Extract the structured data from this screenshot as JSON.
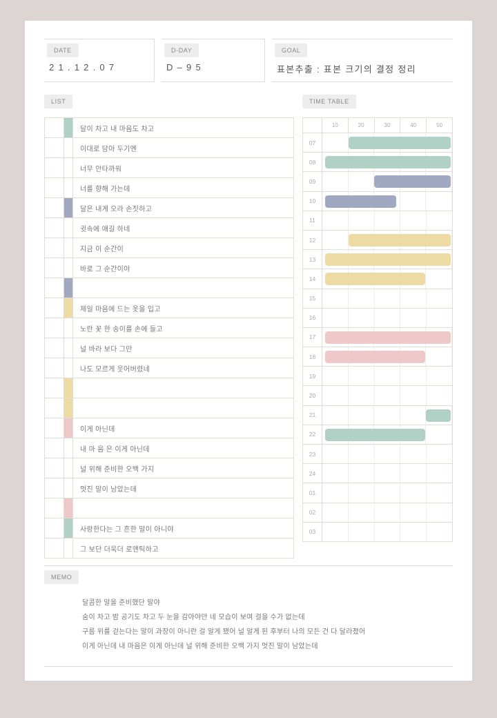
{
  "labels": {
    "date": "DATE",
    "dday": "D-DAY",
    "goal": "GOAL",
    "list": "LIST",
    "timetable": "TIME TABLE",
    "memo": "MEMO"
  },
  "header": {
    "date": "2 1 . 1 2 . 0 7",
    "dday": "D – 9 5",
    "goal": "표본추출 : 표본 크기의 결정 정리"
  },
  "colors": {
    "teal": "#b1d0c6",
    "blue": "#a0a8c2",
    "yellow": "#eedba4",
    "pink": "#efc9ca"
  },
  "list": [
    {
      "color": "teal",
      "text": "달이 차고 내 마음도 차고"
    },
    {
      "color": "none",
      "text": "이대로 담아 두기엔"
    },
    {
      "color": "none",
      "text": "너무 안타까워"
    },
    {
      "color": "none",
      "text": "너를 향해 가는데"
    },
    {
      "color": "blue",
      "text": "달은 내게 오라 손짓하고"
    },
    {
      "color": "none",
      "text": "귓속에 애길 하네"
    },
    {
      "color": "none",
      "text": "지금 이 순간이"
    },
    {
      "color": "none",
      "text": "바로 그 순간이야"
    },
    {
      "color": "blue",
      "text": ""
    },
    {
      "color": "yellow",
      "text": "제일 마음에 드는 옷을 입고"
    },
    {
      "color": "none",
      "text": "노란 꽃 한 송이를 손에 들고"
    },
    {
      "color": "none",
      "text": "널 바라 보다 그만"
    },
    {
      "color": "none",
      "text": "나도 모르게 웃어버렸네"
    },
    {
      "color": "yellow",
      "text": ""
    },
    {
      "color": "yellow",
      "text": ""
    },
    {
      "color": "pink",
      "text": "이게 아닌데"
    },
    {
      "color": "none",
      "text": "내 마 음 은 이게 아닌데"
    },
    {
      "color": "none",
      "text": "널 위해 준비한 오백 가지"
    },
    {
      "color": "none",
      "text": "멋진 말이 남았는데"
    },
    {
      "color": "pink",
      "text": ""
    },
    {
      "color": "teal",
      "text": "사랑한다는 그 흔한 말이 아니야"
    },
    {
      "color": "none",
      "text": "그 보단 더욱더 로맨틱하고"
    }
  ],
  "timetable": {
    "minutes": [
      "10",
      "20",
      "30",
      "40",
      "50"
    ],
    "hours": [
      "07",
      "08",
      "09",
      "10",
      "11",
      "12",
      "13",
      "14",
      "15",
      "16",
      "17",
      "18",
      "19",
      "20",
      "21",
      "22",
      "23",
      "24",
      "01",
      "02",
      "03"
    ],
    "bars": [
      {
        "hour": "07",
        "start": 20,
        "end": 100,
        "color": "teal"
      },
      {
        "hour": "08",
        "start": 2,
        "end": 100,
        "color": "teal"
      },
      {
        "hour": "09",
        "start": 40,
        "end": 100,
        "color": "blue"
      },
      {
        "hour": "10",
        "start": 2,
        "end": 58,
        "color": "blue"
      },
      {
        "hour": "12",
        "start": 20,
        "end": 100,
        "color": "yellow"
      },
      {
        "hour": "13",
        "start": 2,
        "end": 100,
        "color": "yellow"
      },
      {
        "hour": "14",
        "start": 2,
        "end": 80,
        "color": "yellow"
      },
      {
        "hour": "17",
        "start": 2,
        "end": 100,
        "color": "pink"
      },
      {
        "hour": "18",
        "start": 2,
        "end": 80,
        "color": "pink"
      },
      {
        "hour": "21",
        "start": 80,
        "end": 100,
        "color": "teal"
      },
      {
        "hour": "22",
        "start": 2,
        "end": 80,
        "color": "teal"
      }
    ]
  },
  "memo": [
    "달콤한 말을 준비했단 말야",
    "숨이 차고 밤 공기도 차고 두 눈을 감아야만 네 모습이 보여 걸을 수가 없는데",
    "구름 위를 걷는다는 말이 과장이 아니란 걸 알게 됐어 널 알게 된 후부터 나의 모든 건 다 달라졌어",
    "이게 아닌데 내 마음은 이게 아닌데 널 위해 준비한 오백 가지 멋진 말이 남았는데"
  ]
}
